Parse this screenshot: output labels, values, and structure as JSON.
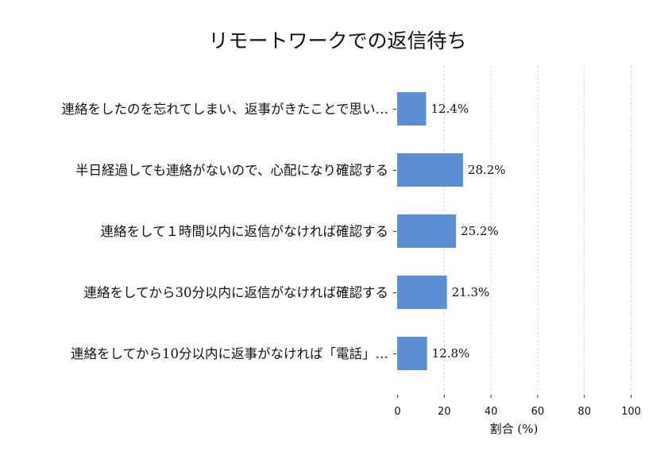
{
  "chart_data": {
    "type": "bar",
    "orientation": "horizontal",
    "title": "リモートワークでの返信待ち",
    "xlabel": "割合 (%)",
    "ylabel": "",
    "xlim": [
      0,
      100
    ],
    "xticks": [
      0,
      20,
      40,
      60,
      80,
      100
    ],
    "grid": "vertical dashed",
    "bar_color": "#5b8fd1",
    "categories": [
      "連絡をしたのを忘れてしまい、返事がきたことで思い…",
      "半日経過しても連絡がないので、心配になり確認する",
      "連絡をして１時間以内に返信がなければ確認する",
      "連絡をしてから30分以内に返信がなければ確認する",
      "連絡をしてから10分以内に返事がなければ「電話」…"
    ],
    "values": [
      12.4,
      28.2,
      25.2,
      21.3,
      12.8
    ],
    "value_labels": [
      "12.4%",
      "28.2%",
      "25.2%",
      "21.3%",
      "12.8%"
    ]
  }
}
